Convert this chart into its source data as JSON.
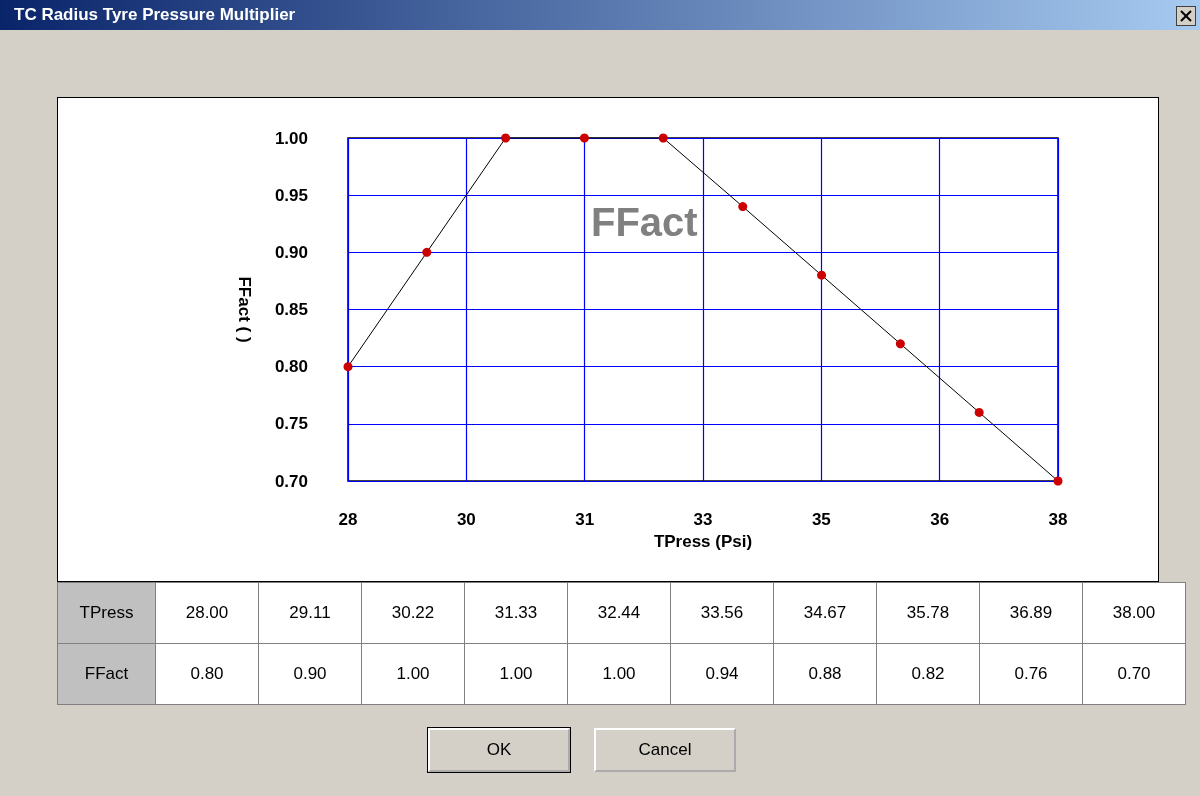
{
  "chart_data": {
    "type": "line",
    "title": "TC Radius Tyre Pressure Multiplier",
    "xlabel": "TPress (Psi)",
    "ylabel": "FFact ( )",
    "x": [
      28,
      29.11,
      30.22,
      31.33,
      32.44,
      33.56,
      34.67,
      35.78,
      36.89,
      38
    ],
    "series": [
      {
        "name": "FFact",
        "color": "#cc0000",
        "values": [
          0.8,
          0.9,
          1.0,
          1.0,
          1.0,
          0.94,
          0.88,
          0.82,
          0.76,
          0.7
        ]
      }
    ],
    "xlim": [
      28,
      38
    ],
    "xticks": [
      28,
      {
        "value": 29.667,
        "label": "30"
      },
      {
        "value": 31.333,
        "label": "31"
      },
      33,
      {
        "value": 34.667,
        "label": "35"
      },
      {
        "value": 36.333,
        "label": "36"
      },
      38
    ],
    "ylim": [
      0.7,
      1.0
    ],
    "yticks": [
      {
        "value": 0.7,
        "label": "0.70"
      },
      {
        "value": 0.75,
        "label": "0.75"
      },
      {
        "value": 0.8,
        "label": "0.80"
      },
      {
        "value": 0.85,
        "label": "0.85"
      },
      {
        "value": 0.9,
        "label": "0.90"
      },
      {
        "value": 0.95,
        "label": "0.95"
      },
      {
        "value": 1.0,
        "label": "1.00"
      }
    ],
    "grid": true,
    "legend": false,
    "marker": "circle",
    "line_style": "solid",
    "annotations": [
      "TPress",
      "OK",
      "Cancel",
      "28.00",
      "29.11",
      "30.22",
      "31.33",
      "32.44",
      "33.56",
      "34.67",
      "35.78",
      "36.89",
      "38.00",
      "0.80",
      "0.90",
      "1.00",
      "1.00",
      "1.00",
      "0.94",
      "0.88",
      "0.82",
      "0.76",
      "0.70"
    ]
  }
}
